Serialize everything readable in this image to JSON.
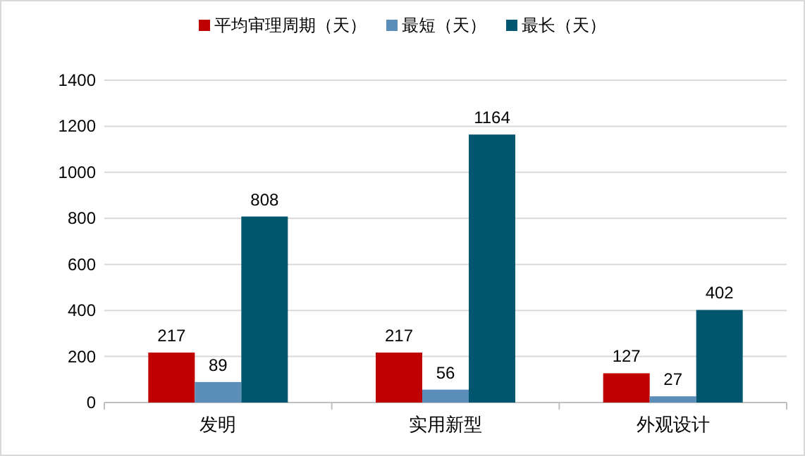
{
  "chart_data": {
    "type": "bar",
    "categories": [
      "发明",
      "实用新型",
      "外观设计"
    ],
    "series": [
      {
        "name": "平均审理周期（天）",
        "color": "#c00000",
        "values": [
          217,
          217,
          127
        ]
      },
      {
        "name": "最短（天）",
        "color": "#5b8fb9",
        "values": [
          89,
          56,
          27
        ]
      },
      {
        "name": "最长（天）",
        "color": "#00566e",
        "values": [
          808,
          1164,
          402
        ]
      }
    ],
    "ylim": [
      0,
      1400
    ],
    "yticks": [
      0,
      200,
      400,
      600,
      800,
      1000,
      1200,
      1400
    ],
    "grid": "y",
    "legend": "top",
    "data_labels": true
  }
}
